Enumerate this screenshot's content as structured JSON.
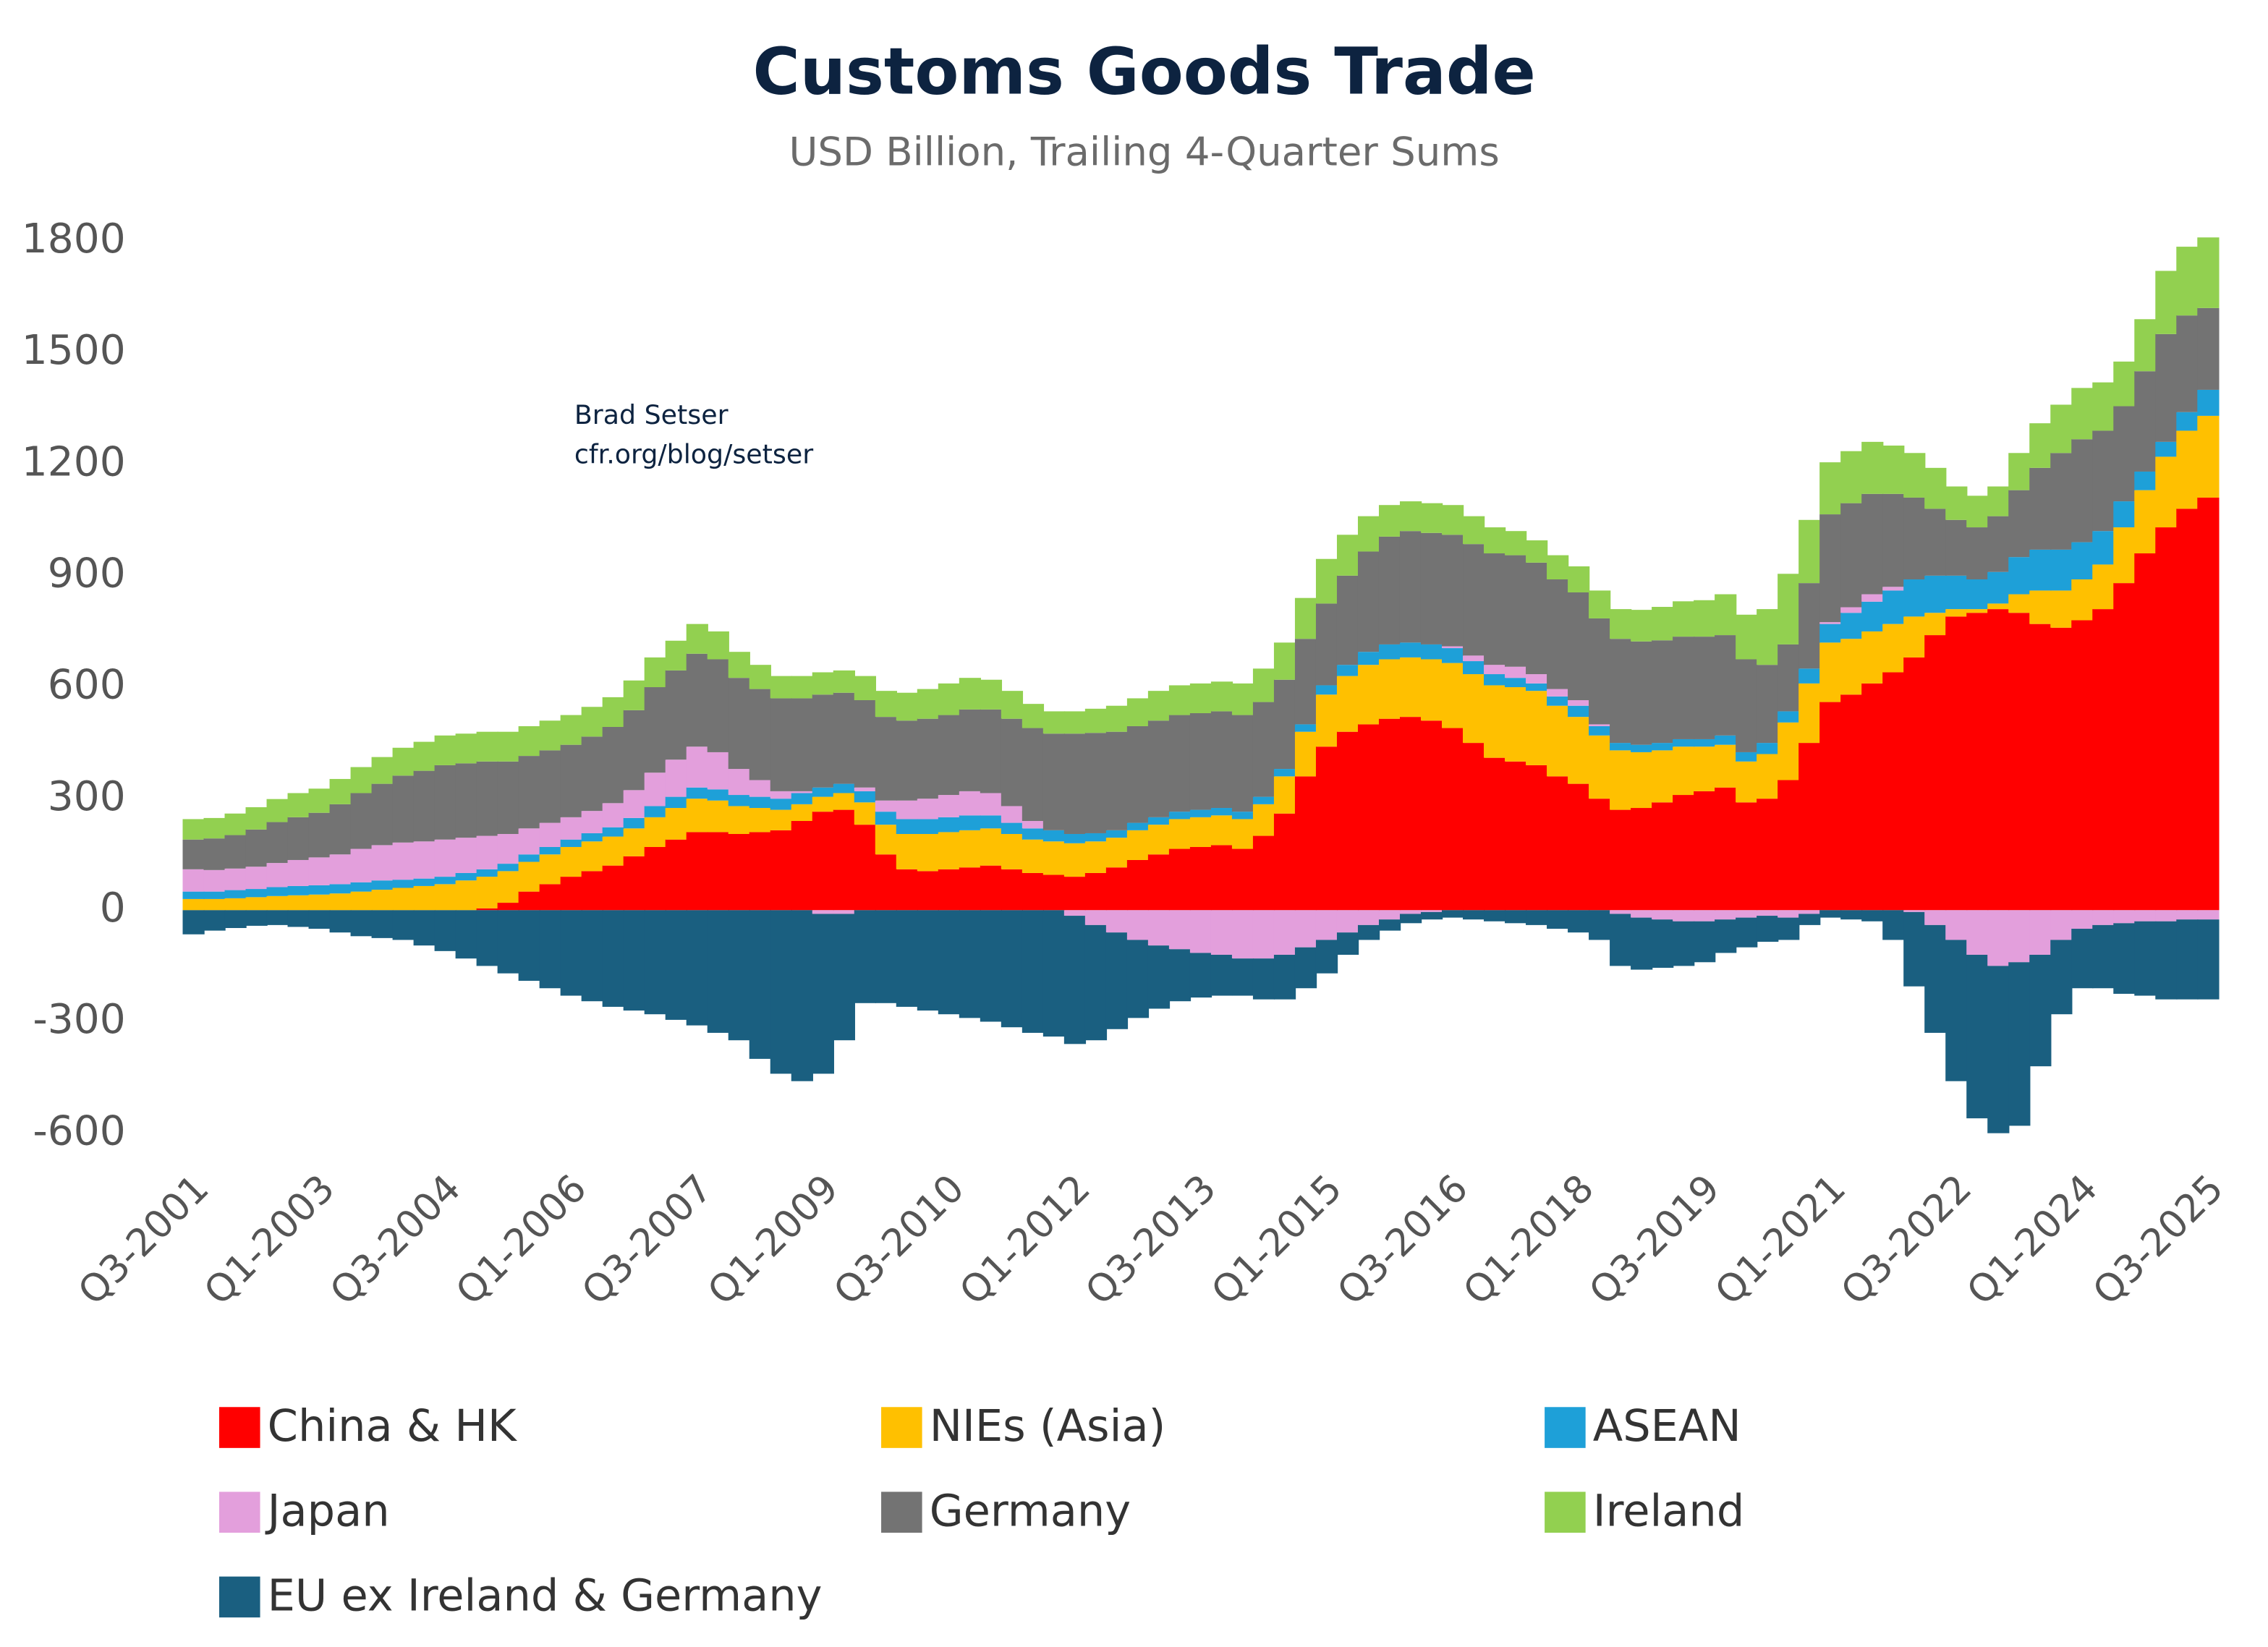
{
  "chart_data": {
    "type": "stacked-step-area",
    "title": "Customs Goods Trade",
    "subtitle": "USD Billion, Trailing 4-Quarter Sums",
    "annotations": [
      "Brad Setser",
      "cfr.org/blog/setser"
    ],
    "categories": [
      "Q3-2001",
      null,
      null,
      null,
      null,
      null,
      "Q1-2003",
      null,
      null,
      null,
      null,
      null,
      "Q3-2004",
      null,
      null,
      null,
      null,
      null,
      "Q1-2006",
      null,
      null,
      null,
      null,
      null,
      "Q3-2007",
      null,
      null,
      null,
      null,
      null,
      "Q1-2009",
      null,
      null,
      null,
      null,
      null,
      "Q3-2010",
      null,
      null,
      null,
      null,
      null,
      "Q1-2012",
      null,
      null,
      null,
      null,
      null,
      "Q3-2013",
      null,
      null,
      null,
      null,
      null,
      "Q1-2015",
      null,
      null,
      null,
      null,
      null,
      "Q3-2016",
      null,
      null,
      null,
      null,
      null,
      "Q1-2018",
      null,
      null,
      null,
      null,
      null,
      "Q3-2019",
      null,
      null,
      null,
      null,
      null,
      "Q1-2021",
      null,
      null,
      null,
      null,
      null,
      "Q3-2022",
      null,
      null,
      null,
      null,
      null,
      "Q1-2024",
      null,
      null,
      null,
      null,
      null,
      "Q3-2025"
    ],
    "ylim": [
      -700,
      1850
    ],
    "yticks": [
      -600,
      -300,
      0,
      300,
      600,
      900,
      1200,
      1500,
      1800
    ],
    "grid": false,
    "legend": "bottom",
    "series": [
      {
        "name": "China & HK",
        "color": "#ff0000",
        "values": [
          0,
          0,
          0,
          0,
          0,
          0,
          0,
          0,
          0,
          0,
          0,
          0,
          0,
          0,
          5,
          20,
          50,
          70,
          90,
          105,
          120,
          145,
          170,
          190,
          210,
          210,
          205,
          210,
          215,
          240,
          265,
          270,
          230,
          150,
          110,
          105,
          110,
          115,
          120,
          110,
          100,
          95,
          90,
          100,
          115,
          135,
          150,
          165,
          170,
          175,
          165,
          200,
          260,
          360,
          440,
          480,
          500,
          515,
          520,
          510,
          490,
          450,
          410,
          400,
          390,
          360,
          340,
          300,
          270,
          275,
          290,
          310,
          320,
          330,
          290,
          300,
          350,
          450,
          560,
          580,
          610,
          640,
          680,
          740,
          790,
          800,
          810,
          800,
          770,
          760,
          780,
          810,
          880,
          960,
          1030,
          1080,
          1110
        ]
      },
      {
        "name": "NIEs (Asia)",
        "color": "#ffc000",
        "values": [
          30,
          30,
          32,
          35,
          38,
          40,
          42,
          45,
          50,
          55,
          60,
          65,
          70,
          80,
          85,
          85,
          80,
          80,
          80,
          80,
          78,
          75,
          80,
          85,
          90,
          85,
          75,
          65,
          55,
          45,
          40,
          45,
          60,
          80,
          95,
          100,
          100,
          100,
          100,
          95,
          90,
          90,
          90,
          85,
          80,
          80,
          80,
          80,
          80,
          80,
          80,
          85,
          100,
          120,
          140,
          150,
          160,
          160,
          160,
          165,
          175,
          185,
          195,
          200,
          200,
          190,
          180,
          170,
          160,
          150,
          140,
          130,
          120,
          115,
          110,
          120,
          155,
          160,
          160,
          150,
          140,
          130,
          110,
          60,
          20,
          10,
          15,
          50,
          90,
          100,
          110,
          120,
          150,
          170,
          190,
          210,
          220
        ]
      },
      {
        "name": "ASEAN",
        "color": "#1ea0d8",
        "values": [
          20,
          20,
          22,
          22,
          24,
          25,
          25,
          25,
          25,
          25,
          22,
          20,
          20,
          20,
          20,
          20,
          20,
          20,
          20,
          22,
          25,
          28,
          30,
          30,
          30,
          30,
          30,
          30,
          30,
          30,
          25,
          25,
          30,
          35,
          40,
          40,
          40,
          40,
          35,
          30,
          30,
          30,
          25,
          22,
          20,
          20,
          20,
          20,
          20,
          20,
          20,
          20,
          20,
          20,
          25,
          30,
          35,
          40,
          40,
          40,
          40,
          35,
          30,
          25,
          20,
          25,
          30,
          25,
          20,
          20,
          20,
          20,
          20,
          25,
          25,
          30,
          30,
          40,
          50,
          70,
          80,
          90,
          100,
          100,
          90,
          80,
          85,
          100,
          110,
          110,
          100,
          90,
          70,
          50,
          40,
          50,
          70
        ]
      },
      {
        "name": "Japan",
        "color": "#e39fdc",
        "values": [
          60,
          58,
          58,
          60,
          65,
          70,
          75,
          80,
          90,
          95,
          100,
          100,
          100,
          95,
          90,
          80,
          70,
          65,
          60,
          60,
          65,
          75,
          90,
          100,
          110,
          100,
          70,
          45,
          20,
          5,
          -10,
          -10,
          10,
          30,
          50,
          55,
          60,
          65,
          60,
          45,
          20,
          0,
          -15,
          -40,
          -60,
          -80,
          -95,
          -105,
          -115,
          -120,
          -130,
          -130,
          -120,
          -100,
          -80,
          -60,
          -40,
          -25,
          -10,
          -5,
          5,
          15,
          25,
          30,
          25,
          20,
          15,
          5,
          -10,
          -20,
          -25,
          -30,
          -30,
          -25,
          -20,
          -15,
          -20,
          -10,
          5,
          15,
          20,
          10,
          -5,
          -40,
          -80,
          -120,
          -150,
          -140,
          -120,
          -80,
          -50,
          -40,
          -35,
          -30,
          -30,
          -25,
          -25
        ]
      },
      {
        "name": "Germany",
        "color": "#737373",
        "values": [
          80,
          85,
          90,
          100,
          110,
          115,
          120,
          135,
          150,
          165,
          180,
          190,
          200,
          200,
          200,
          195,
          195,
          195,
          195,
          200,
          205,
          215,
          230,
          240,
          250,
          250,
          245,
          245,
          250,
          250,
          250,
          245,
          235,
          225,
          215,
          215,
          215,
          220,
          225,
          235,
          250,
          260,
          270,
          270,
          265,
          260,
          260,
          260,
          260,
          260,
          260,
          255,
          240,
          230,
          220,
          240,
          270,
          290,
          300,
          300,
          300,
          300,
          300,
          300,
          300,
          295,
          290,
          285,
          280,
          278,
          276,
          276,
          276,
          270,
          250,
          210,
          180,
          230,
          290,
          280,
          270,
          250,
          220,
          180,
          150,
          140,
          150,
          180,
          220,
          260,
          277,
          270,
          256,
          270,
          290,
          260,
          220
        ]
      },
      {
        "name": "Ireland",
        "color": "#92d050",
        "values": [
          55,
          55,
          58,
          60,
          62,
          65,
          65,
          68,
          70,
          72,
          75,
          78,
          80,
          80,
          80,
          80,
          80,
          80,
          80,
          80,
          80,
          80,
          80,
          80,
          80,
          75,
          70,
          65,
          60,
          60,
          60,
          60,
          65,
          70,
          75,
          80,
          85,
          85,
          80,
          75,
          65,
          60,
          60,
          65,
          70,
          75,
          80,
          80,
          80,
          80,
          85,
          90,
          100,
          110,
          120,
          110,
          95,
          85,
          80,
          80,
          80,
          75,
          70,
          65,
          60,
          65,
          70,
          75,
          80,
          85,
          90,
          95,
          98,
          110,
          120,
          150,
          190,
          170,
          140,
          140,
          140,
          130,
          120,
          110,
          90,
          85,
          80,
          100,
          120,
          130,
          138,
          130,
          120,
          140,
          170,
          185,
          190
        ]
      },
      {
        "name": "EU ex Ireland & Germany",
        "color": "#1a5f80",
        "values": [
          -65,
          -55,
          -48,
          -42,
          -40,
          -45,
          -50,
          -60,
          -70,
          -75,
          -80,
          -95,
          -110,
          -130,
          -150,
          -170,
          -190,
          -210,
          -230,
          -245,
          -260,
          -270,
          -280,
          -295,
          -310,
          -330,
          -350,
          -400,
          -440,
          -460,
          -430,
          -340,
          -250,
          -250,
          -260,
          -270,
          -280,
          -290,
          -300,
          -315,
          -330,
          -340,
          -345,
          -310,
          -260,
          -210,
          -170,
          -140,
          -120,
          -110,
          -100,
          -110,
          -120,
          -110,
          -90,
          -60,
          -40,
          -30,
          -25,
          -20,
          -20,
          -25,
          -30,
          -35,
          -40,
          -50,
          -60,
          -80,
          -140,
          -140,
          -130,
          -120,
          -110,
          -90,
          -80,
          -70,
          -60,
          -30,
          -20,
          -25,
          -30,
          -80,
          -200,
          -290,
          -380,
          -440,
          -450,
          -440,
          -300,
          -200,
          -160,
          -170,
          -190,
          -200,
          -210,
          -215,
          -215
        ]
      }
    ]
  }
}
